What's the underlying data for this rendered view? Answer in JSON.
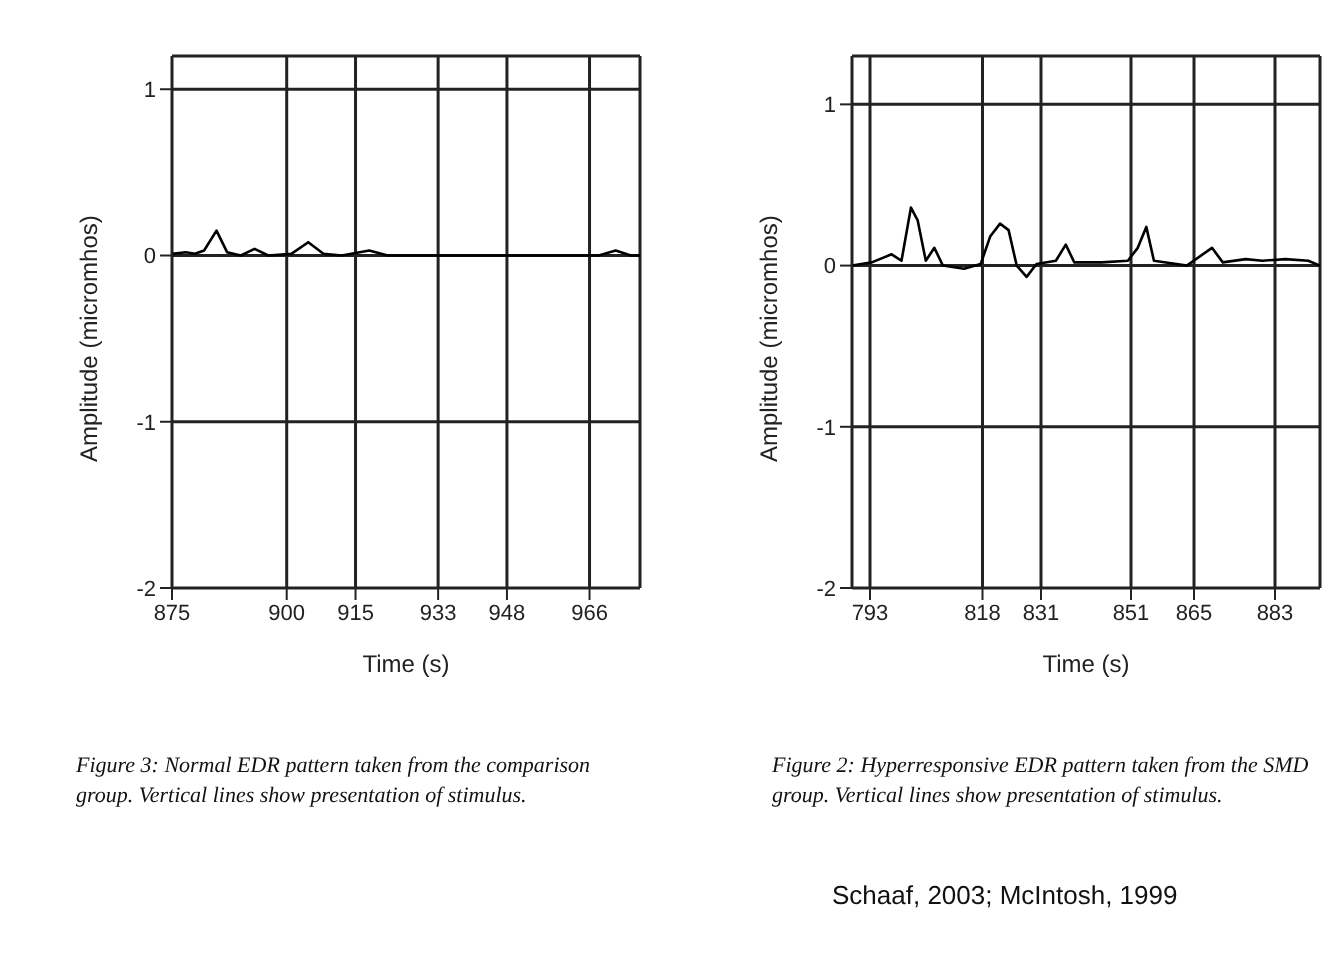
{
  "chart_data": [
    {
      "type": "line",
      "xlabel": "Time (s)",
      "ylabel": "Amplitude (micromhos)",
      "xlim": [
        875,
        977
      ],
      "ylim": [
        -2,
        1.2
      ],
      "xticks": [
        875,
        900,
        915,
        933,
        948,
        966
      ],
      "yticks": [
        -2,
        -1,
        0,
        1
      ],
      "grid": true,
      "legend": false,
      "marker": "none",
      "line_style": "solid",
      "series": [
        {
          "color": "#000000",
          "x": [
            875,
            878,
            880,
            882,
            884.7,
            887,
            890,
            893,
            896,
            901,
            904.7,
            908,
            912,
            918,
            922,
            930,
            940,
            950,
            960,
            968,
            971.7,
            975,
            977
          ],
          "values": [
            0.01,
            0.02,
            0.01,
            0.03,
            0.15,
            0.02,
            0,
            0.04,
            0,
            0.01,
            0.08,
            0.01,
            0,
            0.03,
            0,
            0,
            0,
            0,
            0,
            0,
            0.03,
            0,
            0
          ]
        }
      ],
      "annotations": [
        "Figure 3: Normal EDR pattern taken from the comparison group. Vertical lines show presentation of stimulus."
      ]
    },
    {
      "type": "line",
      "xlabel": "Time (s)",
      "ylabel": "Amplitude (micromhos)",
      "xlim": [
        789,
        893
      ],
      "ylim": [
        -2,
        1.3
      ],
      "xticks": [
        793,
        818,
        831,
        851,
        865,
        883
      ],
      "yticks": [
        -2,
        -1,
        0,
        1
      ],
      "grid": true,
      "legend": false,
      "marker": "none",
      "line_style": "solid",
      "series": [
        {
          "color": "#000000",
          "x": [
            789,
            793.4,
            797.8,
            800,
            802.1,
            803.6,
            805.4,
            807.3,
            809.2,
            813.9,
            817.6,
            819.7,
            821.9,
            823.8,
            825.6,
            827.8,
            830,
            834.3,
            836.5,
            838.4,
            844.5,
            850.3,
            852.5,
            854.4,
            856.1,
            863.4,
            869,
            871.4,
            876.5,
            880.2,
            885.3,
            890.4,
            893
          ],
          "values": [
            0,
            0.02,
            0.07,
            0.03,
            0.36,
            0.28,
            0.03,
            0.11,
            0,
            -0.02,
            0.01,
            0.18,
            0.26,
            0.22,
            0,
            -0.07,
            0.01,
            0.03,
            0.13,
            0.02,
            0.02,
            0.03,
            0.11,
            0.24,
            0.03,
            0,
            0.11,
            0.02,
            0.04,
            0.03,
            0.04,
            0.03,
            0
          ]
        }
      ],
      "annotations": [
        "Figure 2: Hyperresponsive EDR pattern taken from the SMD group. Vertical lines show presentation of stimulus.",
        "Schaaf, 2003;  McIntosh, 1999"
      ]
    }
  ]
}
